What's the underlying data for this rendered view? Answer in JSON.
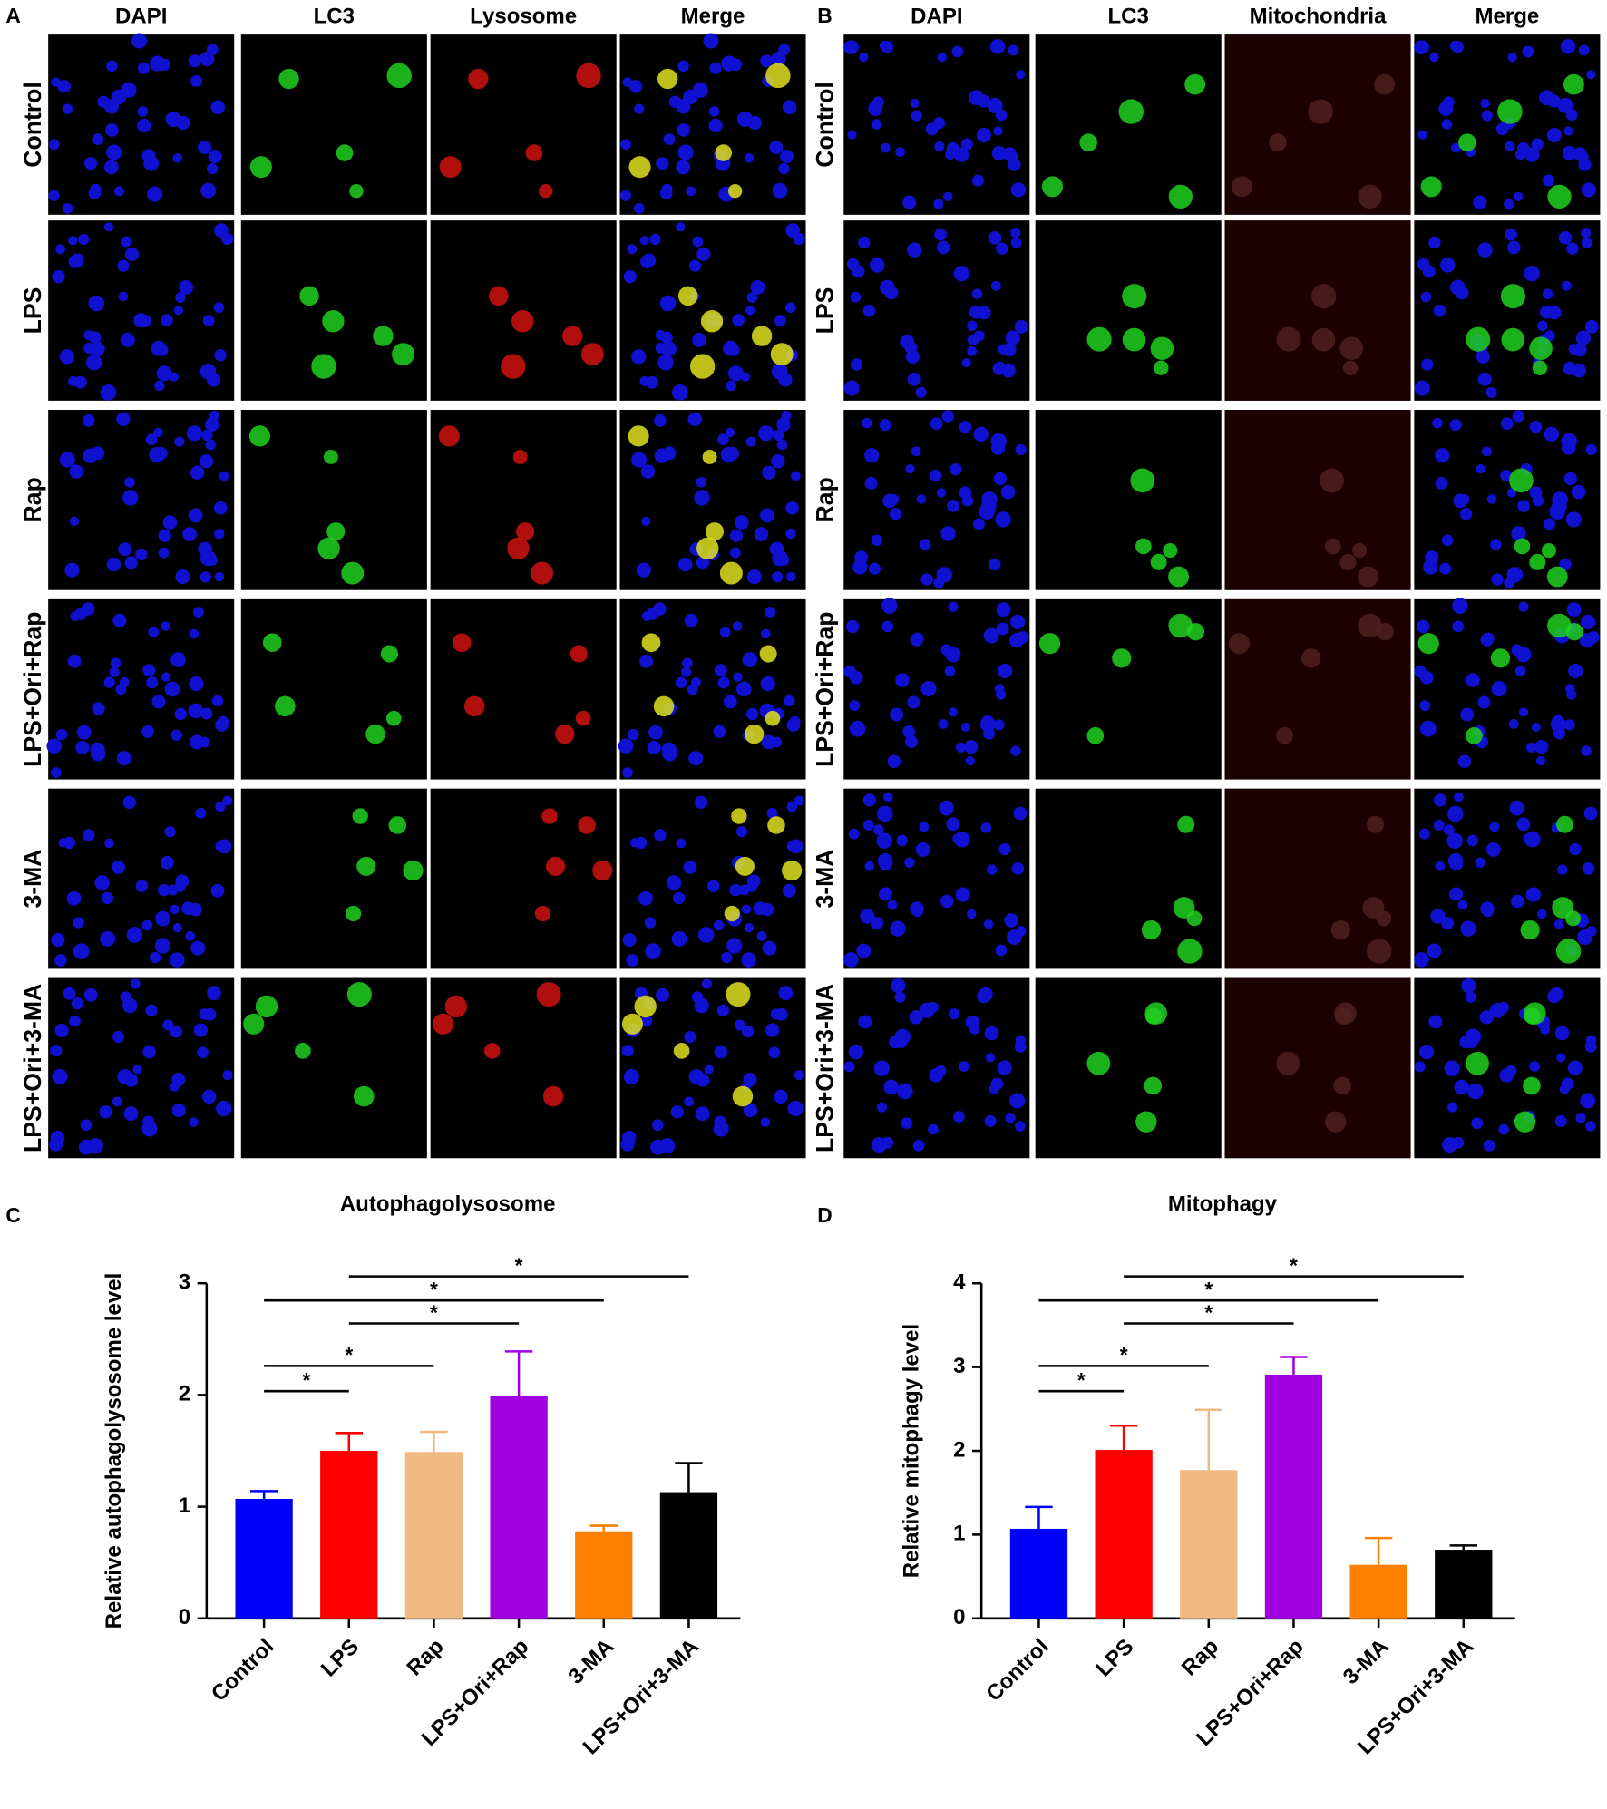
{
  "panel_labels": [
    "A",
    "B",
    "C",
    "D"
  ],
  "micrographs": [
    {
      "columns": [
        "DAPI",
        "LC3",
        "Lysosome",
        "Merge"
      ],
      "rows": [
        "Control",
        "LPS",
        "Rap",
        "LPS+Ori+Rap",
        "3-MA",
        "LPS+Ori+3-MA"
      ]
    },
    {
      "columns": [
        "DAPI",
        "LC3",
        "Mitochondria",
        "Merge"
      ],
      "rows": [
        "Control",
        "LPS",
        "Rap",
        "LPS+Ori+Rap",
        "3-MA",
        "LPS+Ori+3-MA"
      ]
    }
  ],
  "chart_data": [
    {
      "type": "bar",
      "title": "Autophagolysosome",
      "y_label": "Relative autophagolysosome level",
      "categories": [
        "Control",
        "LPS",
        "Rap",
        "LPS+Ori+Rap",
        "3-MA",
        "LPS+Ori+3-MA"
      ],
      "values": [
        1.07,
        1.5,
        1.49,
        1.99,
        0.78,
        1.13
      ],
      "errors": [
        0.07,
        0.16,
        0.18,
        0.4,
        0.05,
        0.26
      ],
      "colors": [
        "#0000ff",
        "#ff0000",
        "#f0b982",
        "#a000e0",
        "#ff8000",
        "#000000"
      ],
      "ylim": [
        0,
        3
      ],
      "yticks": [
        0,
        1,
        2,
        3
      ],
      "significance": [
        {
          "from": 0,
          "to": 1,
          "label": "*"
        },
        {
          "from": 0,
          "to": 2,
          "label": "*"
        },
        {
          "from": 1,
          "to": 3,
          "label": "*"
        },
        {
          "from": 0,
          "to": 4,
          "label": "*"
        },
        {
          "from": 1,
          "to": 5,
          "label": "*"
        }
      ]
    },
    {
      "type": "bar",
      "title": "Mitophagy",
      "y_label": "Relative mitophagy level",
      "categories": [
        "Control",
        "LPS",
        "Rap",
        "LPS+Ori+Rap",
        "3-MA",
        "LPS+Ori+3-MA"
      ],
      "values": [
        1.07,
        2.01,
        1.77,
        2.91,
        0.64,
        0.82
      ],
      "errors": [
        0.26,
        0.29,
        0.72,
        0.21,
        0.32,
        0.05
      ],
      "colors": [
        "#0000ff",
        "#ff0000",
        "#f0b982",
        "#a000e0",
        "#ff8000",
        "#000000"
      ],
      "ylim": [
        0,
        4
      ],
      "yticks": [
        0,
        1,
        2,
        3,
        4
      ],
      "significance": [
        {
          "from": 0,
          "to": 1,
          "label": "*"
        },
        {
          "from": 0,
          "to": 2,
          "label": "*"
        },
        {
          "from": 1,
          "to": 3,
          "label": "*"
        },
        {
          "from": 0,
          "to": 4,
          "label": "*"
        },
        {
          "from": 1,
          "to": 5,
          "label": "*"
        }
      ]
    }
  ]
}
